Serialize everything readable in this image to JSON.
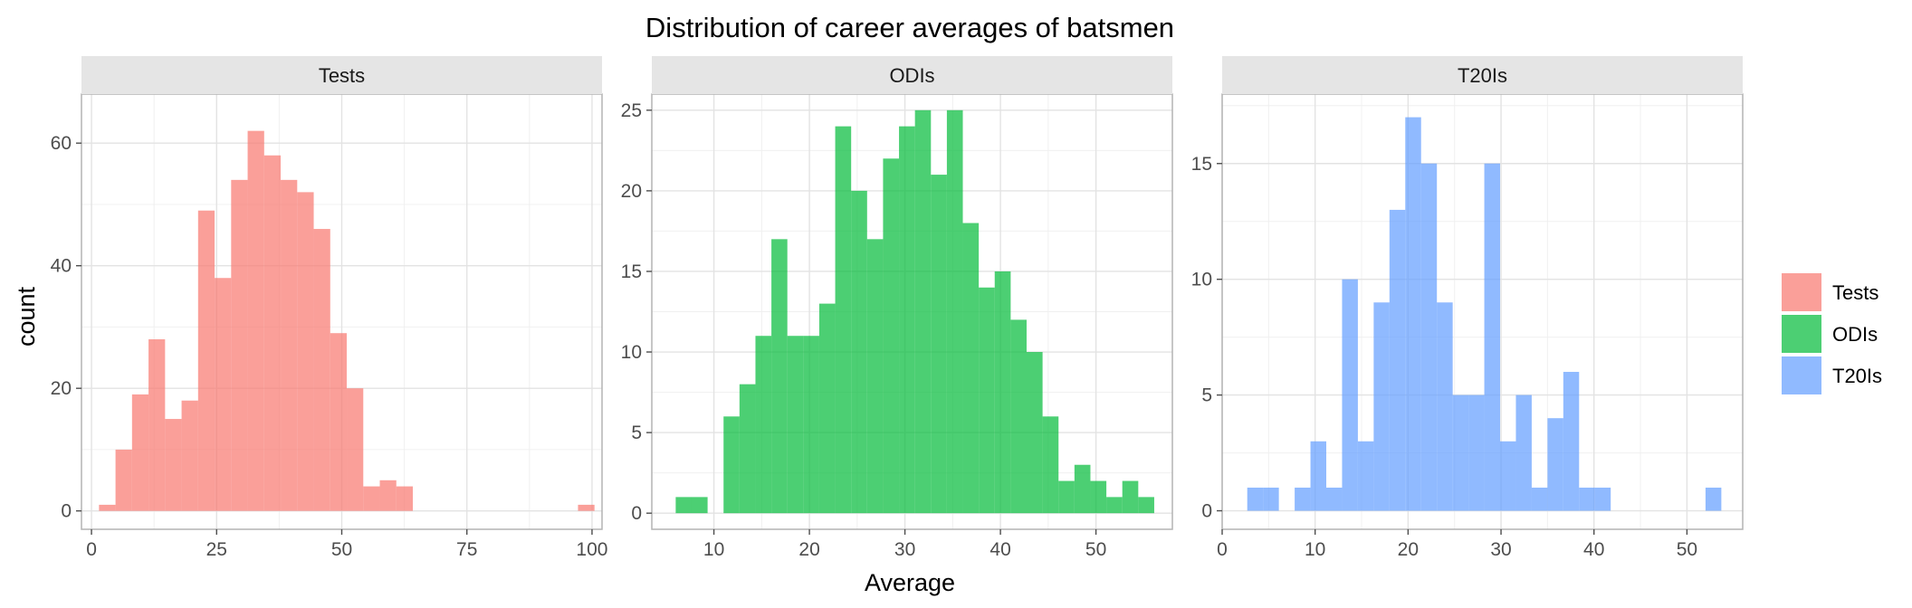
{
  "chart_data": {
    "type": "bar",
    "title": "Distribution of career averages of batsmen",
    "xlabel": "Average",
    "ylabel": "count",
    "grid": true,
    "legend_placement": "right",
    "legend": [
      "Tests",
      "ODIs",
      "T20Is"
    ],
    "panels": [
      {
        "name": "Tests",
        "color": "#F8766D",
        "xlim": [
          -2,
          102
        ],
        "ylim": [
          -3,
          68
        ],
        "x_ticks": [
          0,
          25,
          50,
          75,
          100
        ],
        "y_ticks": [
          0,
          20,
          40,
          60
        ],
        "bin_width": 3.3,
        "bin_start": 1.5,
        "counts": [
          1,
          10,
          19,
          28,
          15,
          18,
          49,
          38,
          54,
          62,
          58,
          54,
          52,
          46,
          29,
          20,
          4,
          5,
          4,
          0,
          0,
          0,
          0,
          0,
          0,
          0,
          0,
          0,
          0,
          1
        ]
      },
      {
        "name": "ODIs",
        "color": "#00BA38",
        "xlim": [
          3.5,
          58
        ],
        "ylim": [
          -1,
          26
        ],
        "x_ticks": [
          10,
          20,
          30,
          40,
          50
        ],
        "y_ticks": [
          0,
          5,
          10,
          15,
          20,
          25
        ],
        "bin_width": 1.67,
        "bin_start": 6,
        "counts": [
          1,
          1,
          0,
          6,
          8,
          11,
          17,
          11,
          11,
          13,
          24,
          20,
          17,
          22,
          24,
          25,
          21,
          25,
          18,
          14,
          15,
          12,
          10,
          6,
          2,
          3,
          2,
          1,
          2,
          1
        ]
      },
      {
        "name": "T20Is",
        "color": "#619CFF",
        "xlim": [
          0,
          56
        ],
        "ylim": [
          -0.8,
          18
        ],
        "x_ticks": [
          0,
          10,
          20,
          30,
          40,
          50
        ],
        "y_ticks": [
          0,
          5,
          10,
          15
        ],
        "bin_width": 1.7,
        "bin_start": 2.7,
        "counts": [
          1,
          1,
          0,
          1,
          3,
          1,
          10,
          3,
          9,
          13,
          17,
          15,
          9,
          5,
          5,
          15,
          3,
          5,
          1,
          4,
          6,
          1,
          1,
          0,
          0,
          0,
          0,
          0,
          0,
          1
        ]
      }
    ]
  }
}
